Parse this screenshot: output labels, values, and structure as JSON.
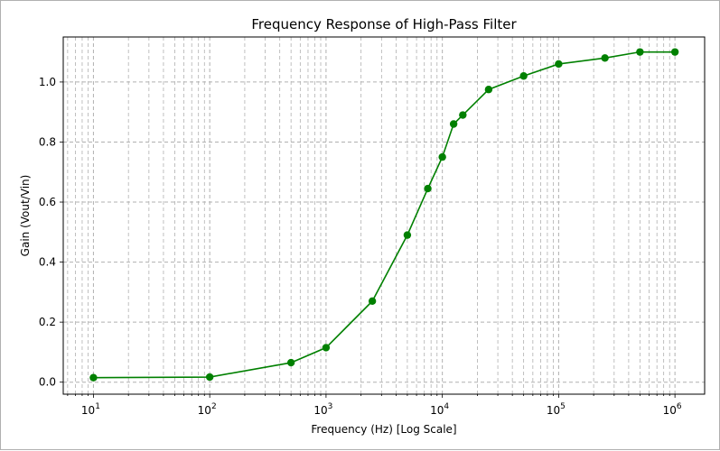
{
  "chart_data": {
    "type": "line",
    "title": "Frequency Response of High-Pass Filter",
    "xlabel": "Frequency (Hz) [Log Scale]",
    "ylabel": "Gain (Vout/Vin)",
    "xscale": "log",
    "xlim": [
      5.5,
      1800000
    ],
    "ylim": [
      -0.04,
      1.15
    ],
    "x_tick_labels": [
      {
        "value": 10,
        "mantissa": "10",
        "exponent": "1"
      },
      {
        "value": 100,
        "mantissa": "10",
        "exponent": "2"
      },
      {
        "value": 1000,
        "mantissa": "10",
        "exponent": "3"
      },
      {
        "value": 10000,
        "mantissa": "10",
        "exponent": "4"
      },
      {
        "value": 100000,
        "mantissa": "10",
        "exponent": "5"
      },
      {
        "value": 1000000,
        "mantissa": "10",
        "exponent": "6"
      }
    ],
    "y_tick_labels": [
      "0.0",
      "0.2",
      "0.4",
      "0.6",
      "0.8",
      "1.0"
    ],
    "y_ticks": [
      0.0,
      0.2,
      0.4,
      0.6,
      0.8,
      1.0
    ],
    "grid": true,
    "grid_style": "dashed",
    "series": [
      {
        "color": "#008000",
        "marker": "circle",
        "x": [
          10,
          100,
          500,
          1000,
          2500,
          5000,
          7500,
          10000,
          12500,
          15000,
          25000,
          50000,
          100000,
          250000,
          500000,
          1000000
        ],
        "y": [
          0.015,
          0.017,
          0.065,
          0.115,
          0.27,
          0.49,
          0.645,
          0.75,
          0.86,
          0.89,
          0.975,
          1.02,
          1.06,
          1.08,
          1.1,
          1.1
        ]
      }
    ]
  }
}
